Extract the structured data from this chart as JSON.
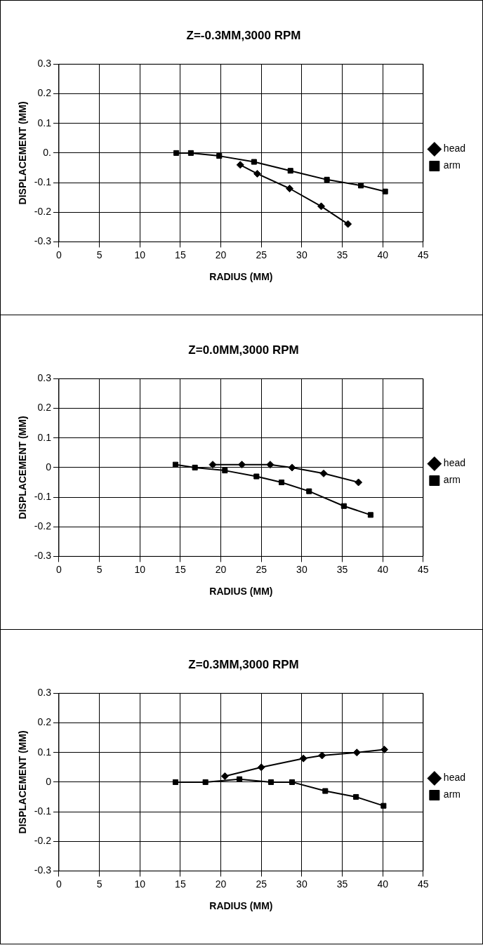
{
  "chart_data": [
    {
      "type": "line",
      "title": "Z=-0.3MM,3000 RPM",
      "xlabel": "RADIUS (MM)",
      "ylabel": "DISPLACEMENT (MM)",
      "xlim": [
        0,
        45
      ],
      "xticks": [
        0,
        5,
        10,
        15,
        20,
        25,
        30,
        35,
        40,
        45
      ],
      "ylim": [
        -0.3,
        0.3
      ],
      "yticks": [
        -0.3,
        -0.2,
        -0.1,
        {
          "value": 0,
          "label": "0."
        },
        0.1,
        0.2,
        0.3
      ],
      "grid": true,
      "legend": "right",
      "series": [
        {
          "name": "head",
          "color": "#000000",
          "marker": "diamond",
          "x": [
            22.4,
            24.5,
            28.5,
            32.4,
            35.7
          ],
          "values": [
            -0.04,
            -0.07,
            -0.12,
            -0.18,
            -0.24
          ]
        },
        {
          "name": "arm",
          "color": "#000000",
          "marker": "square",
          "x": [
            14.5,
            16.3,
            19.8,
            24.1,
            28.6,
            33.1,
            37.3,
            40.3
          ],
          "values": [
            0.0,
            0.0,
            -0.01,
            -0.03,
            -0.06,
            -0.09,
            -0.11,
            -0.13
          ]
        }
      ]
    },
    {
      "type": "line",
      "title": "Z=0.0MM,3000 RPM",
      "xlabel": "RADIUS (MM)",
      "ylabel": "DISPLACEMENT (MM)",
      "xlim": [
        0,
        45
      ],
      "xticks": [
        0,
        5,
        10,
        15,
        20,
        25,
        30,
        35,
        40,
        45
      ],
      "ylim": [
        -0.3,
        0.3
      ],
      "yticks": [
        -0.3,
        -0.2,
        -0.1,
        0,
        0.1,
        0.2,
        0.3
      ],
      "grid": true,
      "legend": "right",
      "series": [
        {
          "name": "head",
          "color": "#000000",
          "marker": "diamond",
          "x": [
            19.0,
            22.6,
            26.1,
            28.8,
            32.7,
            37.0
          ],
          "values": [
            0.01,
            0.01,
            0.01,
            0.0,
            -0.02,
            -0.05
          ]
        },
        {
          "name": "arm",
          "color": "#000000",
          "marker": "square",
          "x": [
            14.4,
            16.8,
            20.5,
            24.4,
            27.5,
            30.9,
            35.2,
            38.5
          ],
          "values": [
            0.01,
            0.0,
            -0.01,
            -0.03,
            -0.05,
            -0.08,
            -0.13,
            -0.16
          ]
        }
      ]
    },
    {
      "type": "line",
      "title": "Z=0.3MM,3000 RPM",
      "xlabel": "RADIUS (MM)",
      "ylabel": "DISPLACEMENT (MM)",
      "xlim": [
        0,
        45
      ],
      "xticks": [
        0,
        5,
        10,
        15,
        20,
        25,
        30,
        35,
        40,
        45
      ],
      "ylim": [
        -0.3,
        0.3
      ],
      "yticks": [
        -0.3,
        -0.2,
        -0.1,
        0,
        0.1,
        0.2,
        0.3
      ],
      "grid": true,
      "legend": "right",
      "series": [
        {
          "name": "head",
          "color": "#000000",
          "marker": "diamond",
          "x": [
            20.5,
            25.0,
            30.2,
            32.5,
            36.8,
            40.2
          ],
          "values": [
            0.02,
            0.05,
            0.08,
            0.09,
            0.1,
            0.11
          ]
        },
        {
          "name": "arm",
          "color": "#000000",
          "marker": "square",
          "x": [
            14.4,
            18.1,
            22.3,
            26.2,
            28.8,
            32.9,
            36.7,
            40.1
          ],
          "values": [
            0.0,
            0.0,
            0.01,
            0.0,
            0.0,
            -0.03,
            -0.05,
            -0.08
          ]
        }
      ]
    }
  ]
}
